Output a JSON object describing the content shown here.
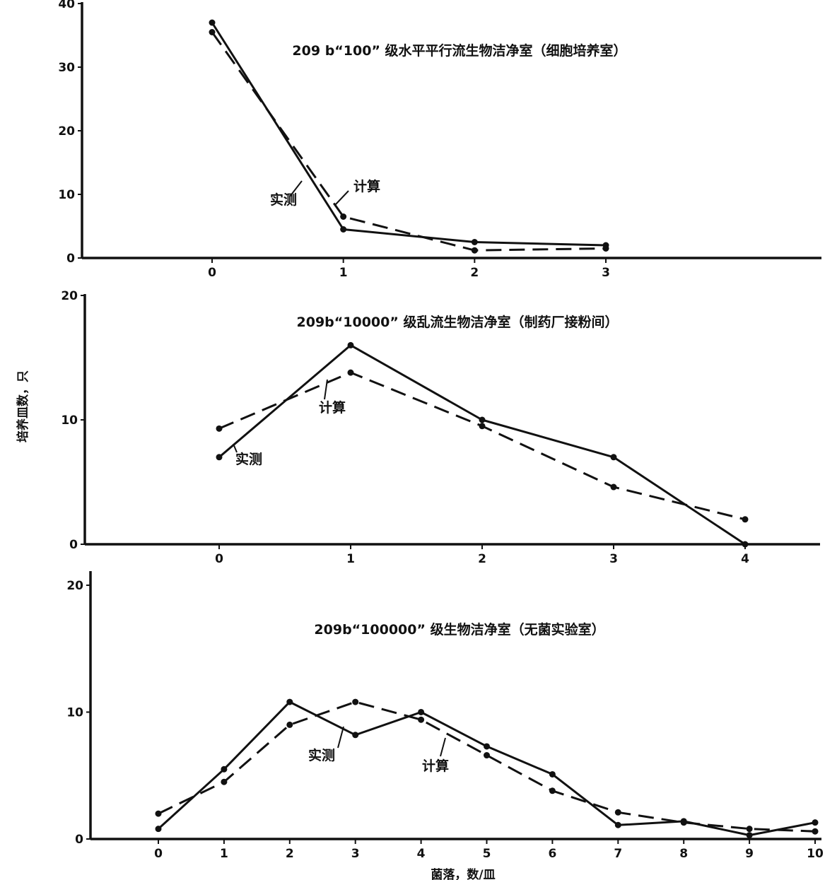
{
  "figure": {
    "ylabel": "培养皿数，只",
    "xlabel": "菌落，数/皿"
  },
  "chart_data": [
    {
      "type": "line",
      "title": "209 b“100” 级水平平行流生物洁净室（细胞培养室）",
      "xlabel": "",
      "ylabel": "",
      "x": [
        0,
        1,
        2,
        3
      ],
      "x_ticks": [
        "0",
        "1",
        "2",
        "3"
      ],
      "y_ticks": [
        "0",
        "10",
        "20",
        "30",
        "40"
      ],
      "ylim": [
        0,
        40
      ],
      "grid": false,
      "series": [
        {
          "name": "实测",
          "style": "solid",
          "values": [
            37,
            4.5,
            2.5,
            2
          ]
        },
        {
          "name": "计算",
          "style": "dashed",
          "values": [
            35.5,
            6.5,
            1.2,
            1.5
          ]
        }
      ],
      "annotations": [
        {
          "text": "实测",
          "series": "实测"
        },
        {
          "text": "计算",
          "series": "计算"
        }
      ]
    },
    {
      "type": "line",
      "title": "209b“10000” 级乱流生物洁净室（制药厂接粉间）",
      "xlabel": "",
      "ylabel": "",
      "x": [
        0,
        1,
        2,
        3,
        4
      ],
      "x_ticks": [
        "0",
        "1",
        "2",
        "3",
        "4"
      ],
      "y_ticks": [
        "0",
        "10",
        "20"
      ],
      "ylim": [
        0,
        20
      ],
      "grid": false,
      "series": [
        {
          "name": "实测",
          "style": "solid",
          "values": [
            7,
            16,
            10,
            7,
            0
          ]
        },
        {
          "name": "计算",
          "style": "dashed",
          "values": [
            9.3,
            13.8,
            9.5,
            4.6,
            2
          ]
        }
      ],
      "annotations": [
        {
          "text": "计算",
          "series": "计算"
        },
        {
          "text": "实测",
          "series": "实测"
        }
      ]
    },
    {
      "type": "line",
      "title": "209b“100000” 级生物洁净室（无菌实验室）",
      "xlabel": "菌落，数/皿",
      "ylabel": "",
      "x": [
        0,
        1,
        2,
        3,
        4,
        5,
        6,
        7,
        8,
        9,
        10
      ],
      "x_ticks": [
        "0",
        "1",
        "2",
        "3",
        "4",
        "5",
        "6",
        "7",
        "8",
        "9",
        "10"
      ],
      "y_ticks": [
        "0",
        "10",
        "20"
      ],
      "ylim": [
        0,
        21
      ],
      "grid": false,
      "series": [
        {
          "name": "实测",
          "style": "solid",
          "values": [
            0.8,
            5.5,
            10.8,
            8.2,
            10,
            7.3,
            5.1,
            1.1,
            1.4,
            0.3,
            1.3
          ]
        },
        {
          "name": "计算",
          "style": "dashed",
          "values": [
            2,
            4.5,
            9,
            10.8,
            9.4,
            6.6,
            3.8,
            2.1,
            1.3,
            0.8,
            0.6
          ]
        }
      ],
      "annotations": [
        {
          "text": "实测",
          "series": "实测"
        },
        {
          "text": "计算",
          "series": "计算"
        }
      ]
    }
  ]
}
